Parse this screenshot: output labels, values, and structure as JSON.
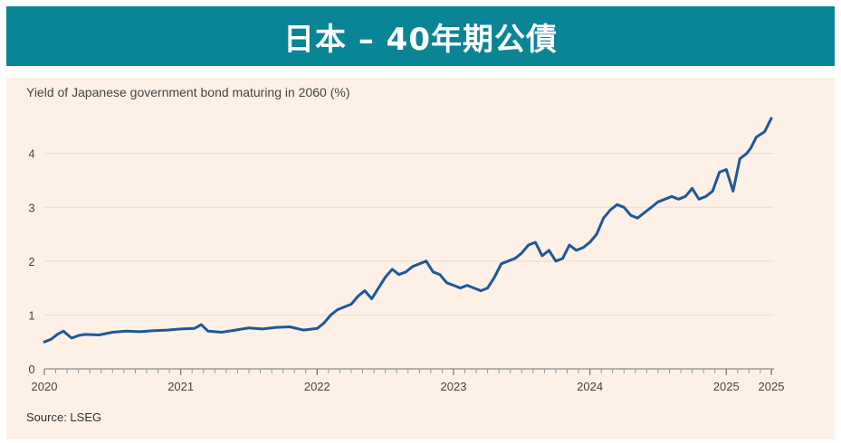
{
  "header": {
    "title": "日本 – 40年期公債"
  },
  "colors": {
    "banner": "#0a8596",
    "panel_bg": "#fdf0e6",
    "line": "#1f5896",
    "grid": "#e9ddd2"
  },
  "chart_data": {
    "type": "line",
    "title": "Yield of Japanese government bond maturing in 2060 (%)",
    "source": "Source: LSEG",
    "xlabel": "",
    "ylabel": "",
    "ylim": [
      0,
      4.8
    ],
    "yticks": [
      0,
      1,
      2,
      3,
      4
    ],
    "xlim": [
      2020.0,
      2025.35
    ],
    "x_tick_labels": [
      {
        "label": "2020",
        "x": 2020.0
      },
      {
        "label": "2021",
        "x": 2021.0
      },
      {
        "label": "2022",
        "x": 2022.0
      },
      {
        "label": "2023",
        "x": 2023.0
      },
      {
        "label": "2024",
        "x": 2024.0
      },
      {
        "label": "2025",
        "x": 2025.0
      },
      {
        "label": "2025",
        "x": 2025.33
      }
    ],
    "grid": true,
    "series": [
      {
        "name": "",
        "x": [
          2020.0,
          2020.05,
          2020.1,
          2020.14,
          2020.2,
          2020.25,
          2020.3,
          2020.4,
          2020.5,
          2020.6,
          2020.7,
          2020.8,
          2020.9,
          2021.0,
          2021.1,
          2021.15,
          2021.2,
          2021.3,
          2021.4,
          2021.5,
          2021.6,
          2021.7,
          2021.8,
          2021.9,
          2022.0,
          2022.05,
          2022.1,
          2022.15,
          2022.2,
          2022.25,
          2022.3,
          2022.35,
          2022.4,
          2022.45,
          2022.5,
          2022.55,
          2022.6,
          2022.65,
          2022.7,
          2022.75,
          2022.8,
          2022.85,
          2022.9,
          2022.95,
          2023.0,
          2023.05,
          2023.1,
          2023.15,
          2023.2,
          2023.25,
          2023.3,
          2023.35,
          2023.4,
          2023.45,
          2023.5,
          2023.55,
          2023.6,
          2023.65,
          2023.7,
          2023.75,
          2023.8,
          2023.85,
          2023.9,
          2023.95,
          2024.0,
          2024.05,
          2024.1,
          2024.15,
          2024.2,
          2024.25,
          2024.3,
          2024.35,
          2024.4,
          2024.45,
          2024.5,
          2024.55,
          2024.6,
          2024.65,
          2024.7,
          2024.75,
          2024.8,
          2024.85,
          2024.9,
          2024.95,
          2025.0,
          2025.05,
          2025.1,
          2025.15,
          2025.18,
          2025.2,
          2025.22,
          2025.25,
          2025.28,
          2025.3,
          2025.33
        ],
        "values": [
          0.5,
          0.55,
          0.65,
          0.7,
          0.57,
          0.62,
          0.64,
          0.63,
          0.68,
          0.7,
          0.69,
          0.71,
          0.72,
          0.74,
          0.75,
          0.82,
          0.7,
          0.68,
          0.72,
          0.76,
          0.74,
          0.77,
          0.78,
          0.72,
          0.75,
          0.85,
          1.0,
          1.1,
          1.15,
          1.2,
          1.35,
          1.45,
          1.3,
          1.5,
          1.7,
          1.85,
          1.75,
          1.8,
          1.9,
          1.95,
          2.0,
          1.8,
          1.75,
          1.6,
          1.55,
          1.5,
          1.55,
          1.5,
          1.45,
          1.5,
          1.7,
          1.95,
          2.0,
          2.05,
          2.15,
          2.3,
          2.35,
          2.1,
          2.2,
          2.0,
          2.05,
          2.3,
          2.2,
          2.25,
          2.35,
          2.5,
          2.8,
          2.95,
          3.05,
          3.0,
          2.85,
          2.8,
          2.9,
          3.0,
          3.1,
          3.15,
          3.2,
          3.15,
          3.2,
          3.35,
          3.15,
          3.2,
          3.3,
          3.65,
          3.7,
          3.3,
          3.9,
          4.0,
          4.1,
          4.2,
          4.3,
          4.35,
          4.4,
          4.5,
          4.65
        ]
      }
    ]
  }
}
